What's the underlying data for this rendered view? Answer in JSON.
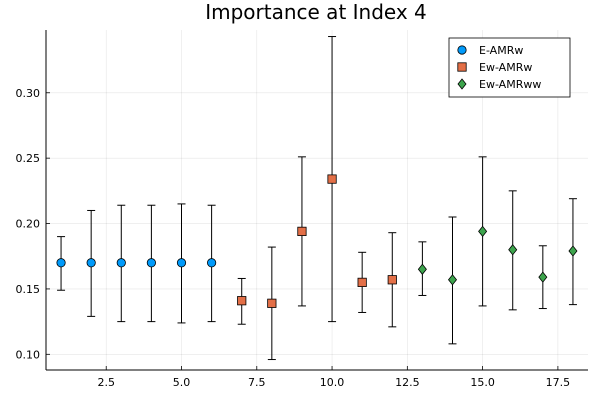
{
  "chart_data": {
    "type": "scatter",
    "title": "Importance at Index 4",
    "xlabel": "",
    "ylabel": "",
    "xlim": [
      0.5,
      18.5
    ],
    "ylim": [
      0.088,
      0.348
    ],
    "x_ticks": [
      2.5,
      5.0,
      7.5,
      10.0,
      12.5,
      15.0,
      17.5
    ],
    "x_tick_labels": [
      "2.5",
      "5.0",
      "7.5",
      "10.0",
      "12.5",
      "15.0",
      "17.5"
    ],
    "y_ticks": [
      0.1,
      0.15,
      0.2,
      0.25,
      0.3
    ],
    "y_tick_labels": [
      "0.10",
      "0.15",
      "0.20",
      "0.25",
      "0.30"
    ],
    "grid": true,
    "legend_position": "top-right",
    "series": [
      {
        "name": "E-AMRw",
        "marker": "circle",
        "color": "#009AFA",
        "points": [
          {
            "x": 1,
            "y": 0.17,
            "lo": 0.149,
            "hi": 0.19
          },
          {
            "x": 2,
            "y": 0.17,
            "lo": 0.129,
            "hi": 0.21
          },
          {
            "x": 3,
            "y": 0.17,
            "lo": 0.125,
            "hi": 0.214
          },
          {
            "x": 4,
            "y": 0.17,
            "lo": 0.125,
            "hi": 0.214
          },
          {
            "x": 5,
            "y": 0.17,
            "lo": 0.124,
            "hi": 0.215
          },
          {
            "x": 6,
            "y": 0.17,
            "lo": 0.125,
            "hi": 0.214
          }
        ]
      },
      {
        "name": "Ew-AMRw",
        "marker": "square",
        "color": "#E36F47",
        "points": [
          {
            "x": 7,
            "y": 0.141,
            "lo": 0.123,
            "hi": 0.158
          },
          {
            "x": 8,
            "y": 0.139,
            "lo": 0.096,
            "hi": 0.182
          },
          {
            "x": 9,
            "y": 0.194,
            "lo": 0.137,
            "hi": 0.251
          },
          {
            "x": 10,
            "y": 0.234,
            "lo": 0.125,
            "hi": 0.343
          },
          {
            "x": 11,
            "y": 0.155,
            "lo": 0.132,
            "hi": 0.178
          },
          {
            "x": 12,
            "y": 0.157,
            "lo": 0.121,
            "hi": 0.193
          }
        ]
      },
      {
        "name": "Ew-AMRww",
        "marker": "diamond",
        "color": "#3DA44D",
        "points": [
          {
            "x": 13,
            "y": 0.165,
            "lo": 0.145,
            "hi": 0.186
          },
          {
            "x": 14,
            "y": 0.157,
            "lo": 0.108,
            "hi": 0.205
          },
          {
            "x": 15,
            "y": 0.194,
            "lo": 0.137,
            "hi": 0.251
          },
          {
            "x": 16,
            "y": 0.18,
            "lo": 0.134,
            "hi": 0.225
          },
          {
            "x": 17,
            "y": 0.159,
            "lo": 0.135,
            "hi": 0.183
          },
          {
            "x": 18,
            "y": 0.179,
            "lo": 0.138,
            "hi": 0.219
          }
        ]
      }
    ]
  }
}
